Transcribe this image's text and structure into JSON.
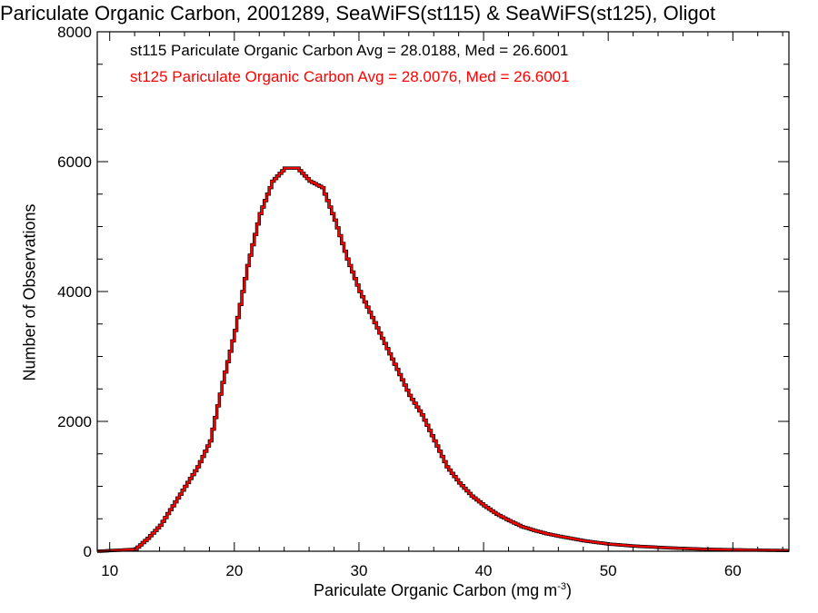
{
  "chart_data": {
    "type": "histogram",
    "title": "Pariculate Organic Carbon, 2001289, SeaWiFS(st115) & SeaWiFS(st125), Oligot",
    "xlabel": {
      "text": "Pariculate Organic Carbon (mg m",
      "superscript": "-3",
      "suffix": ")"
    },
    "ylabel": "Number of Observations",
    "xlim": [
      9,
      64.5
    ],
    "ylim": [
      0,
      8000
    ],
    "xticks": [
      10,
      20,
      30,
      40,
      50,
      60
    ],
    "yticks": [
      0,
      2000,
      4000,
      6000,
      8000
    ],
    "bin_width": 0.2,
    "legend_placement": "top-left",
    "legend": [
      {
        "text": "st115 Pariculate Organic Carbon Avg = 28.0188, Med = 26.6001",
        "color": "#000000"
      },
      {
        "text": "st125 Pariculate Organic Carbon Avg = 28.0076, Med = 26.6001",
        "color": "#ff0000"
      }
    ],
    "series": [
      {
        "name": "st115",
        "color": "#000000",
        "line_width": 3.5,
        "x": [
          9,
          12,
          13,
          14,
          15,
          16,
          17,
          18,
          19,
          20,
          21,
          22,
          23,
          24,
          25,
          26,
          27,
          28,
          29,
          30,
          31,
          32,
          33,
          34,
          35,
          36,
          37,
          38,
          39,
          40,
          41,
          42,
          43,
          44,
          45,
          46,
          48,
          50,
          52,
          55,
          58,
          61,
          64.5
        ],
        "y": [
          0,
          30,
          200,
          400,
          700,
          1000,
          1300,
          1700,
          2600,
          3400,
          4400,
          5200,
          5700,
          5900,
          5900,
          5700,
          5600,
          5100,
          4500,
          4000,
          3600,
          3200,
          2800,
          2400,
          2100,
          1700,
          1300,
          1050,
          850,
          700,
          570,
          470,
          380,
          320,
          270,
          230,
          160,
          110,
          80,
          50,
          30,
          20,
          10
        ]
      },
      {
        "name": "st125",
        "color": "#ff0000",
        "line_width": 2,
        "x": [
          9,
          12,
          13,
          14,
          15,
          16,
          17,
          18,
          19,
          20,
          21,
          22,
          23,
          24,
          25,
          26,
          27,
          28,
          29,
          30,
          31,
          32,
          33,
          34,
          35,
          36,
          37,
          38,
          39,
          40,
          41,
          42,
          43,
          44,
          45,
          46,
          48,
          50,
          52,
          55,
          58,
          61,
          64.5
        ],
        "y": [
          0,
          30,
          200,
          400,
          700,
          1000,
          1300,
          1700,
          2600,
          3400,
          4400,
          5200,
          5700,
          5900,
          5900,
          5700,
          5600,
          5100,
          4500,
          4000,
          3600,
          3200,
          2800,
          2400,
          2100,
          1700,
          1300,
          1050,
          850,
          700,
          570,
          470,
          380,
          320,
          270,
          230,
          160,
          110,
          80,
          50,
          30,
          20,
          10
        ]
      }
    ]
  }
}
